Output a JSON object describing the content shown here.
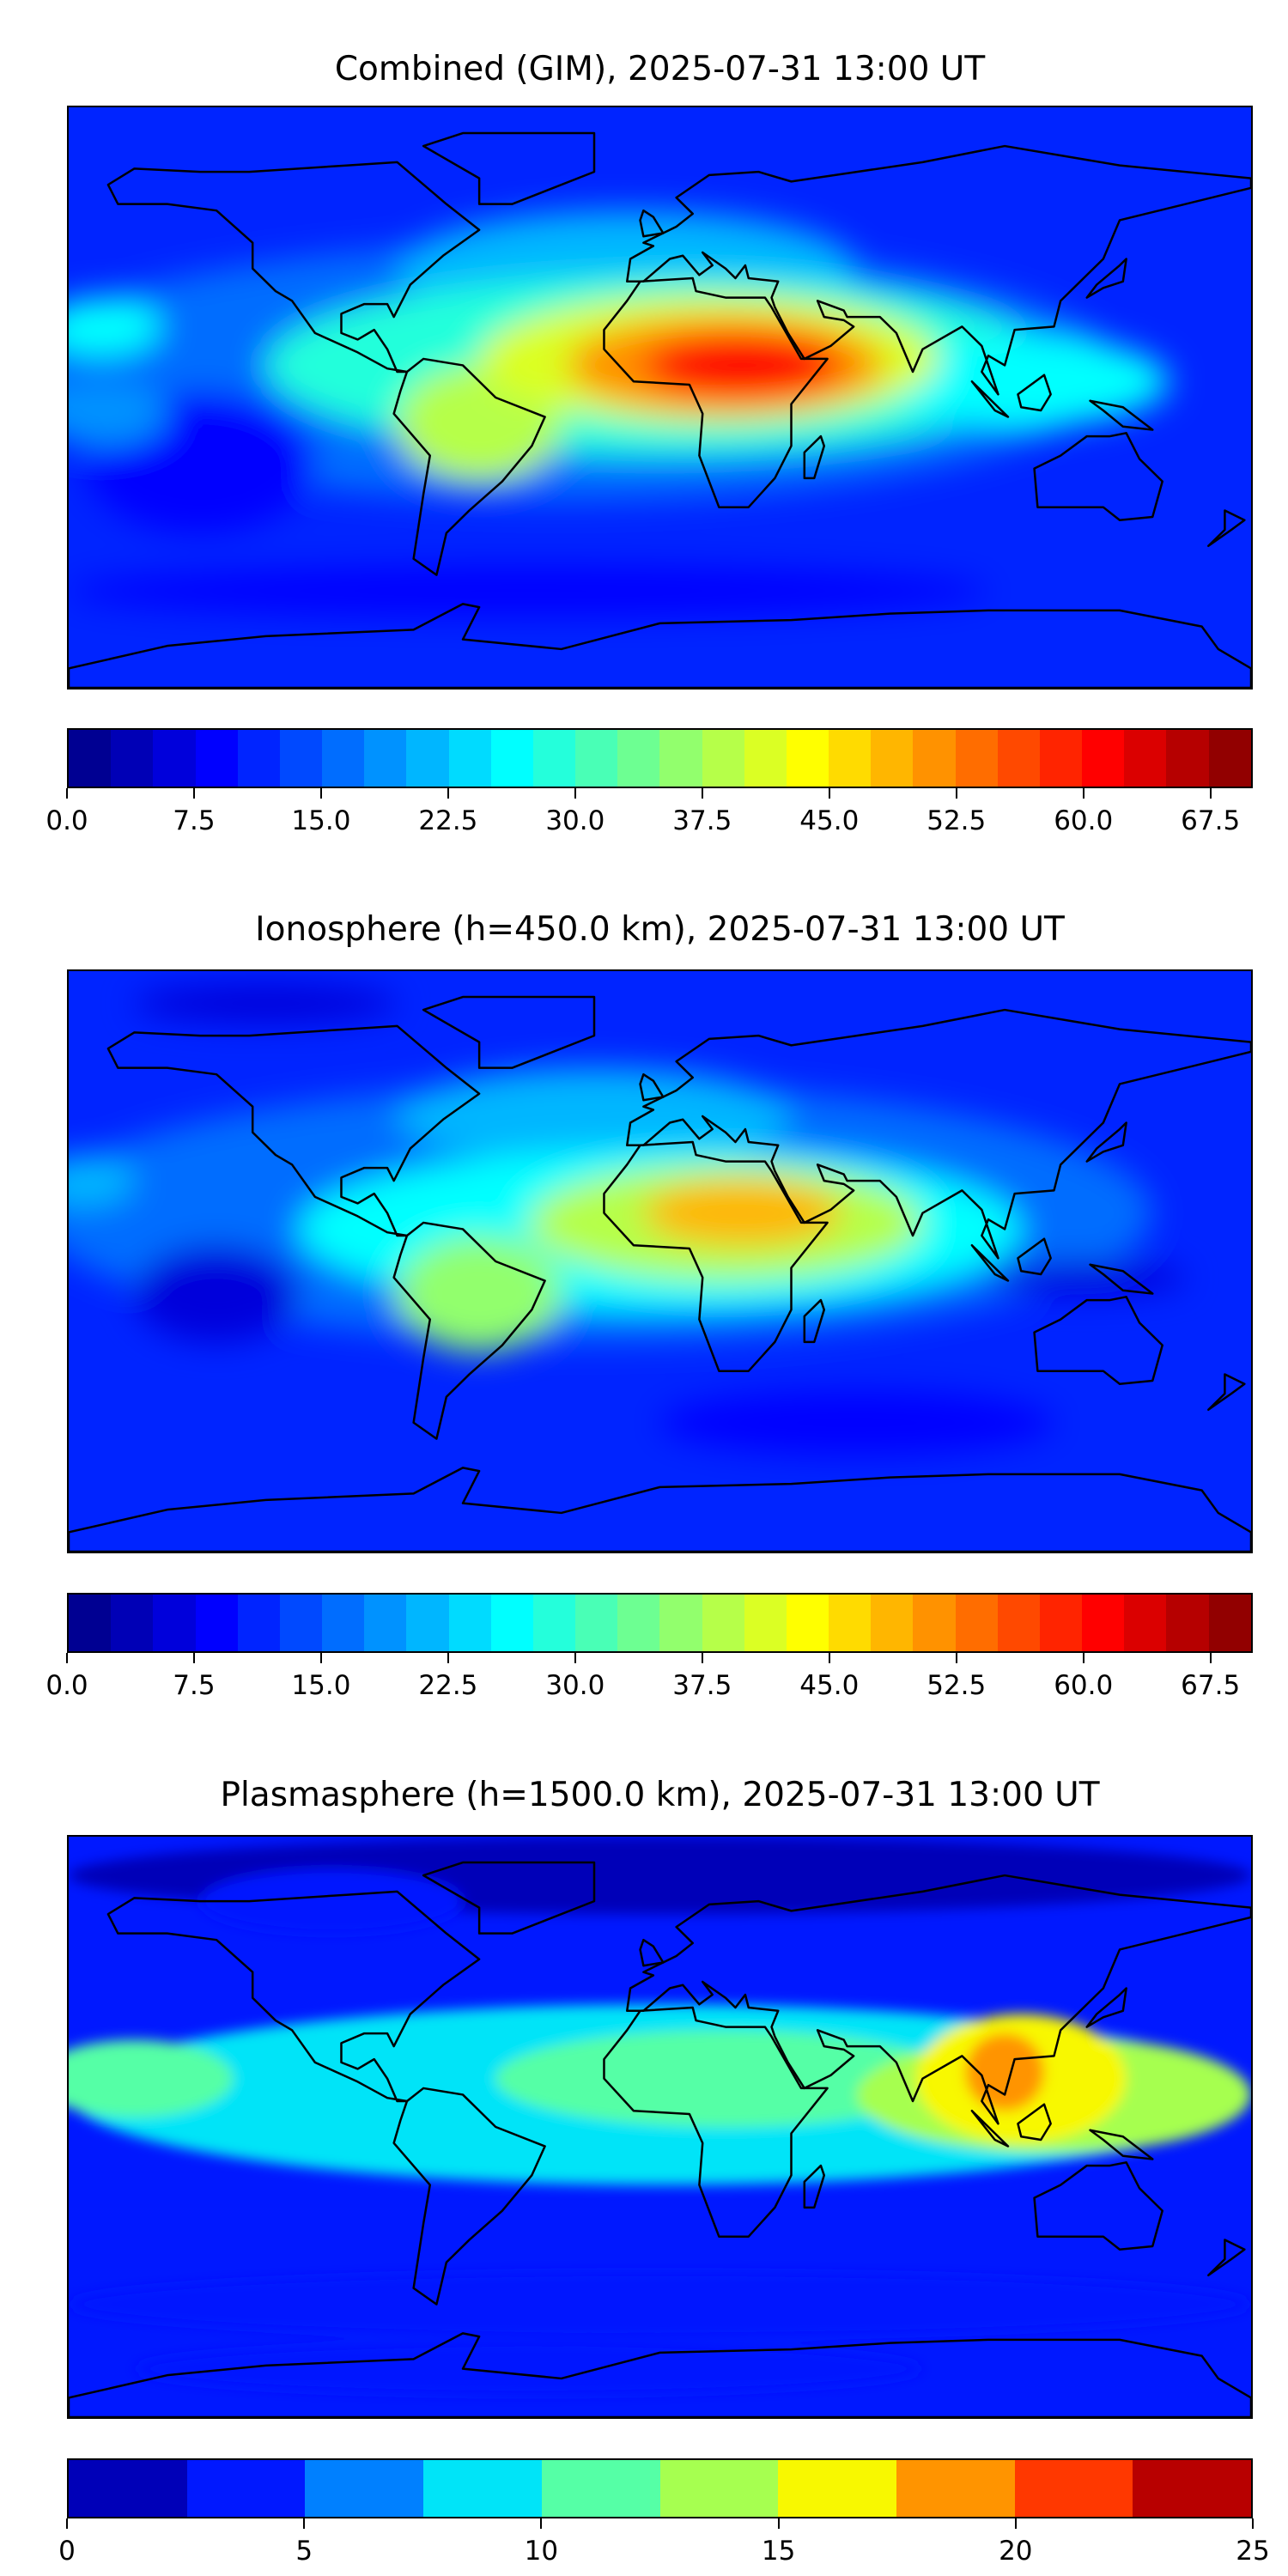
{
  "panels": [
    {
      "title": "Combined (GIM), 2025-07-31 13:00 UT",
      "cbar_min": 0,
      "cbar_max": 70,
      "cbar_step": 2.5,
      "ticks": [
        "0.0",
        "7.5",
        "15.0",
        "22.5",
        "30.0",
        "37.5",
        "45.0",
        "52.5",
        "60.0",
        "67.5"
      ],
      "tick_values": [
        0,
        7.5,
        15,
        22.5,
        30,
        37.5,
        45,
        52.5,
        60,
        67.5
      ]
    },
    {
      "title": "Ionosphere  (h=450.0 km), 2025-07-31 13:00 UT",
      "cbar_min": 0,
      "cbar_max": 70,
      "cbar_step": 2.5,
      "ticks": [
        "0.0",
        "7.5",
        "15.0",
        "22.5",
        "30.0",
        "37.5",
        "45.0",
        "52.5",
        "60.0",
        "67.5"
      ],
      "tick_values": [
        0,
        7.5,
        15,
        22.5,
        30,
        37.5,
        45,
        52.5,
        60,
        67.5
      ]
    },
    {
      "title": "Plasmasphere (h=1500.0 km), 2025-07-31 13:00 UT",
      "cbar_min": 0,
      "cbar_max": 25,
      "cbar_step": 2.5,
      "ticks": [
        "0",
        "5",
        "10",
        "15",
        "20",
        "25"
      ],
      "tick_values": [
        0,
        5,
        10,
        15,
        20,
        25
      ],
      "colors": [
        "#0000b8",
        "#0018ff",
        "#0080ff",
        "#00e4f8",
        "#55ffa6",
        "#a6ff50",
        "#f8f800",
        "#ff9400",
        "#ff3800",
        "#b80000"
      ]
    }
  ],
  "chart_data": {
    "type": "heatmap",
    "colormap": "jet",
    "projection": "equirectangular",
    "xlim": [
      -180,
      180
    ],
    "ylim": [
      -90,
      90
    ],
    "panels": [
      "Combined (GIM)",
      "Ionosphere (h=450.0 km)",
      "Plasmasphere (h=1500.0 km)"
    ],
    "peak_values": [
      62,
      50,
      20
    ],
    "peak_locations": [
      "Africa ~20E 10N",
      "Africa ~30E 15N",
      "SE Asia ~105E 15N"
    ]
  }
}
